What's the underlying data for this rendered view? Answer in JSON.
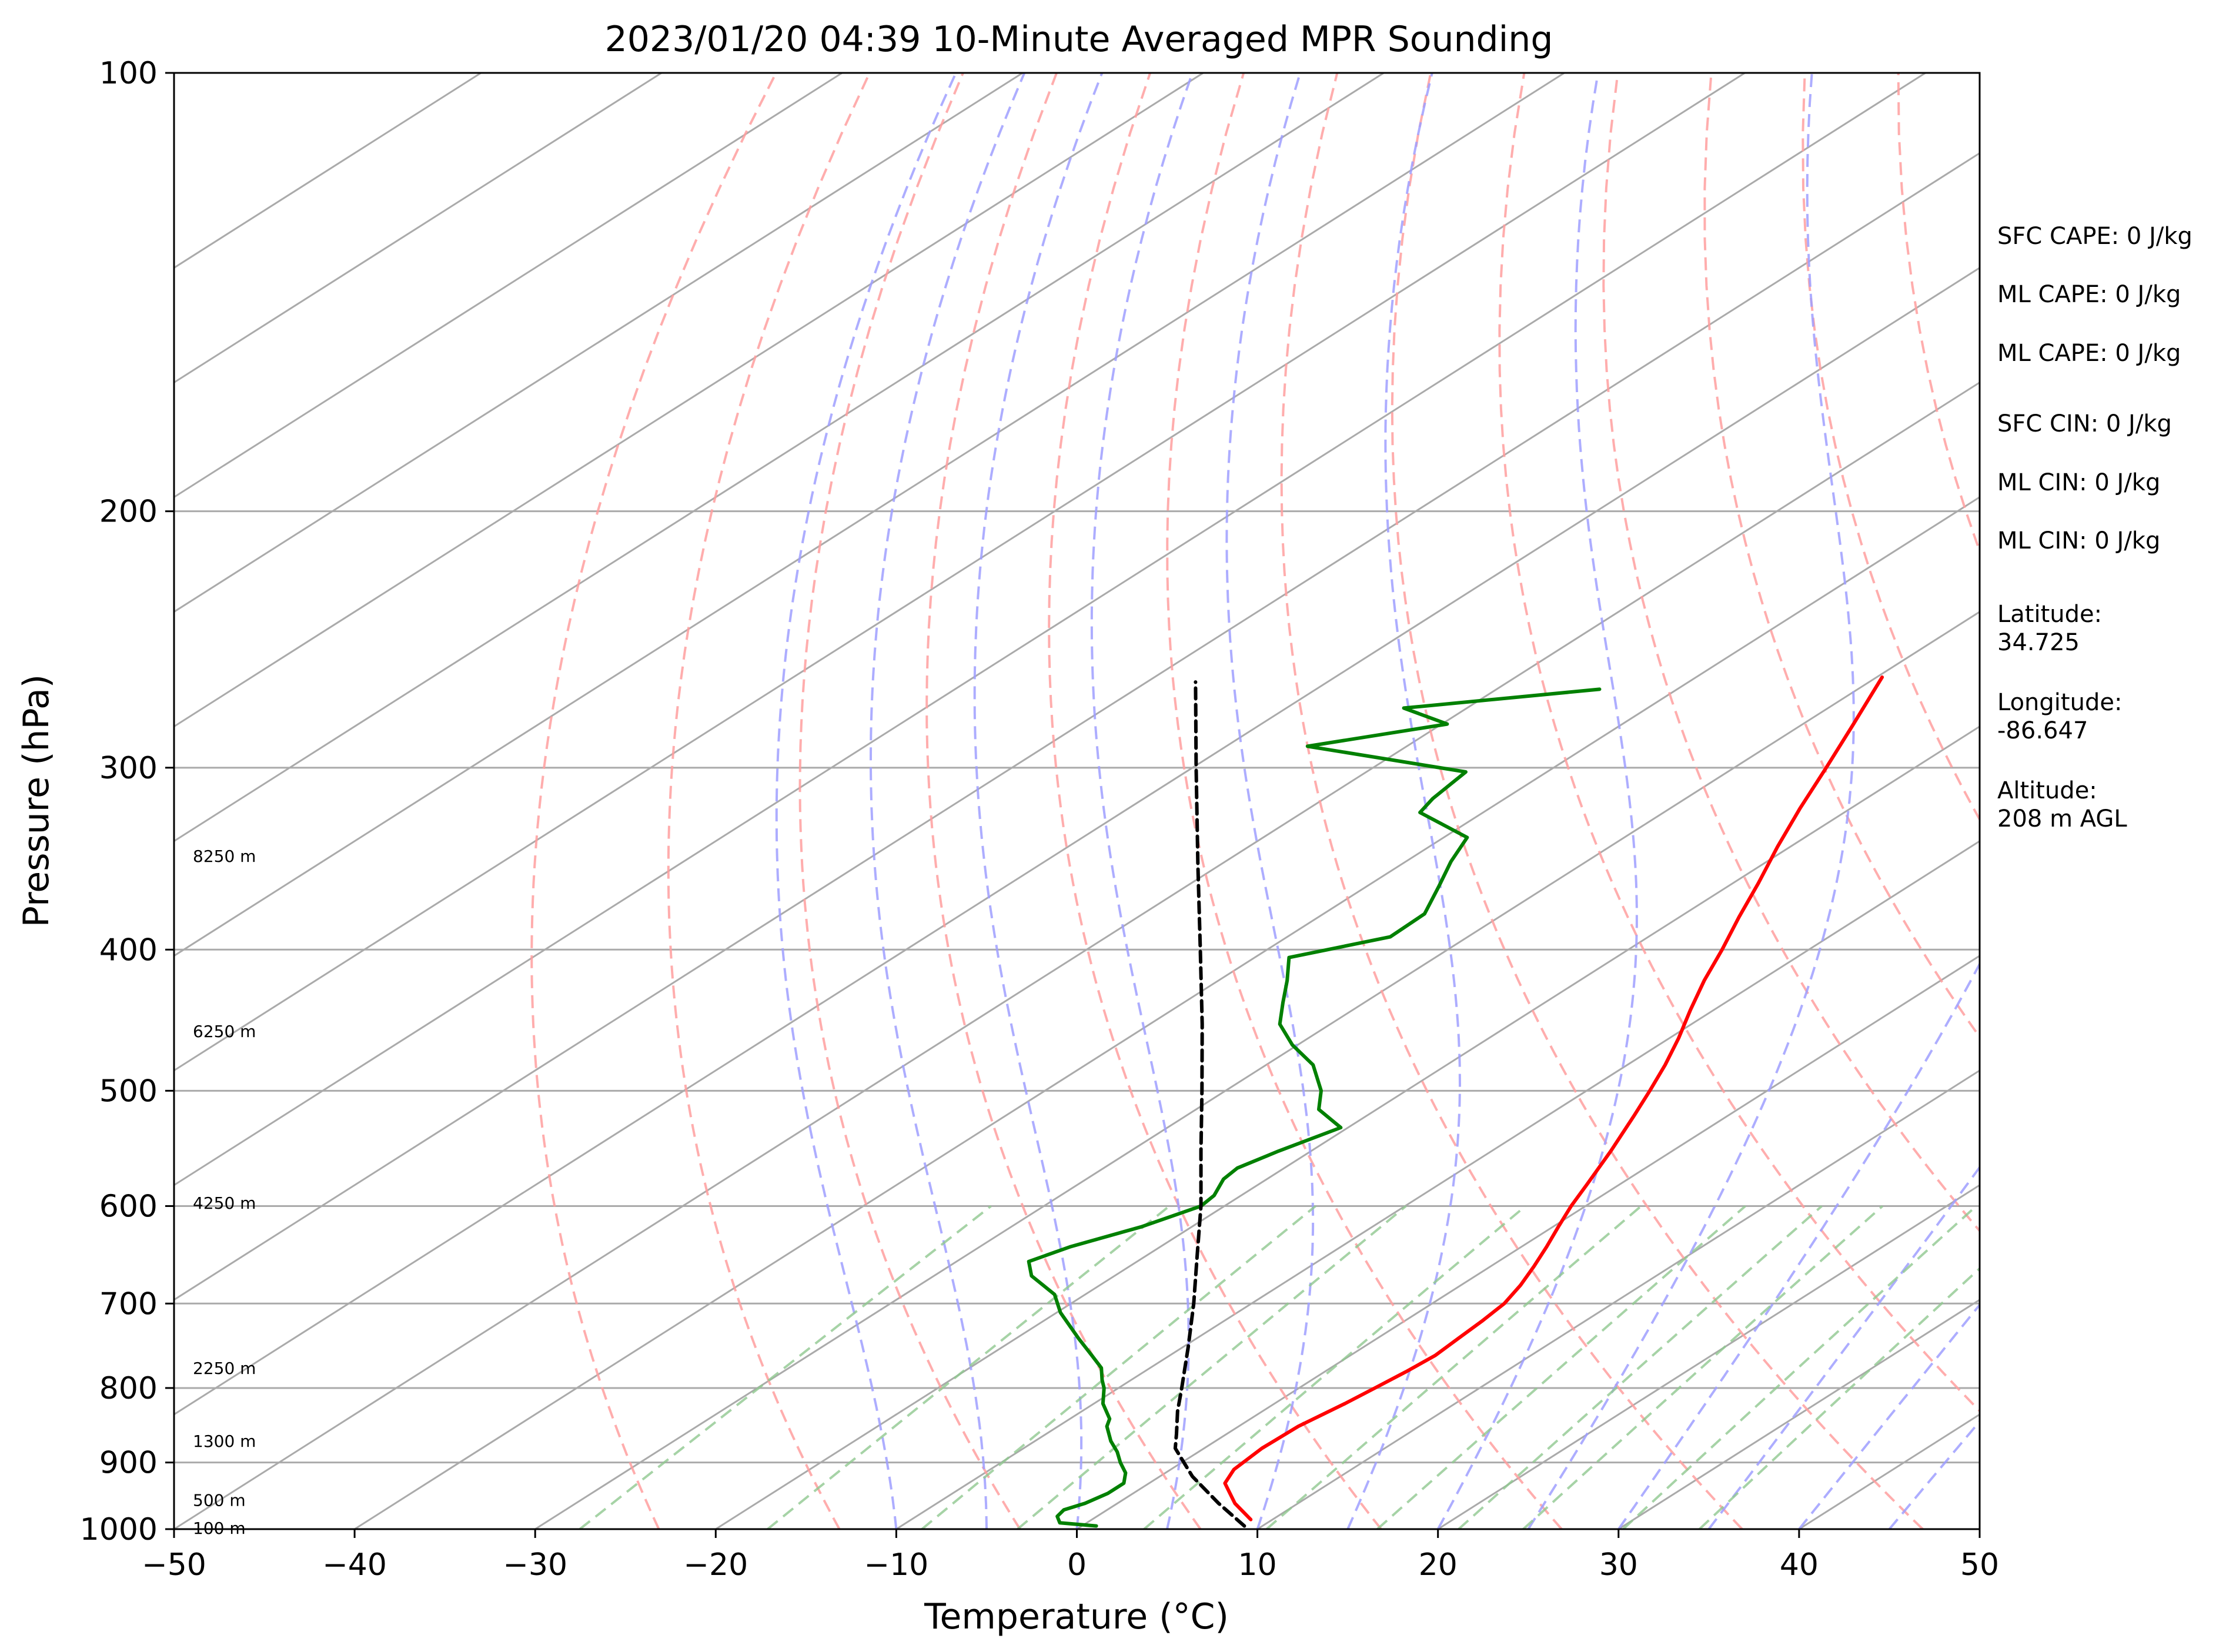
{
  "chart_data": {
    "type": "line",
    "title": "2023/01/20 04:39 10-Minute Averaged MPR Sounding",
    "xlabel": "Temperature (°C)",
    "ylabel": "Pressure (hPa)",
    "xlim": [
      -50,
      50
    ],
    "ylim": [
      1000,
      100
    ],
    "y_scale": "log",
    "skew_t": true,
    "x_ticks": [
      "−50",
      "−40",
      "−30",
      "−20",
      "−10",
      "0",
      "10",
      "20",
      "30",
      "40",
      "50"
    ],
    "x_tick_values": [
      -50,
      -40,
      -30,
      -20,
      -10,
      0,
      10,
      20,
      30,
      40,
      50
    ],
    "y_ticks": [
      "100",
      "200",
      "300",
      "400",
      "500",
      "600",
      "700",
      "800",
      "900",
      "1000"
    ],
    "y_tick_values": [
      100,
      200,
      300,
      400,
      500,
      600,
      700,
      800,
      900,
      1000
    ],
    "grid": true,
    "series": [
      {
        "role": "temperature",
        "color": "#ff0000",
        "points": [
          {
            "p": 985,
            "t": 8.8
          },
          {
            "p": 960,
            "t": 6.5
          },
          {
            "p": 930,
            "t": 4.2
          },
          {
            "p": 910,
            "t": 3.5
          },
          {
            "p": 880,
            "t": 3.2
          },
          {
            "p": 850,
            "t": 3.3
          },
          {
            "p": 820,
            "t": 3.9
          },
          {
            "p": 800,
            "t": 4.2
          },
          {
            "p": 780,
            "t": 4.5
          },
          {
            "p": 760,
            "t": 4.7
          },
          {
            "p": 740,
            "t": 4.5
          },
          {
            "p": 720,
            "t": 4.3
          },
          {
            "p": 700,
            "t": 4.0
          },
          {
            "p": 680,
            "t": 3.3
          },
          {
            "p": 660,
            "t": 2.4
          },
          {
            "p": 640,
            "t": 1.4
          },
          {
            "p": 620,
            "t": 0.3
          },
          {
            "p": 600,
            "t": -0.8
          },
          {
            "p": 580,
            "t": -1.8
          },
          {
            "p": 550,
            "t": -3.4
          },
          {
            "p": 520,
            "t": -5.2
          },
          {
            "p": 500,
            "t": -6.5
          },
          {
            "p": 480,
            "t": -7.9
          },
          {
            "p": 460,
            "t": -9.5
          },
          {
            "p": 440,
            "t": -11.3
          },
          {
            "p": 420,
            "t": -13.1
          },
          {
            "p": 400,
            "t": -14.8
          },
          {
            "p": 380,
            "t": -16.7
          },
          {
            "p": 360,
            "t": -18.6
          },
          {
            "p": 340,
            "t": -20.7
          },
          {
            "p": 320,
            "t": -22.8
          },
          {
            "p": 300,
            "t": -24.9
          },
          {
            "p": 280,
            "t": -27.2
          },
          {
            "p": 260,
            "t": -29.7
          }
        ]
      },
      {
        "role": "dewpoint",
        "color": "#008000",
        "points": [
          {
            "p": 995,
            "t": 0.8
          },
          {
            "p": 990,
            "t": -1.5
          },
          {
            "p": 980,
            "t": -2.2
          },
          {
            "p": 970,
            "t": -2.4
          },
          {
            "p": 960,
            "t": -1.8
          },
          {
            "p": 945,
            "t": -1.4
          },
          {
            "p": 930,
            "t": -1.4
          },
          {
            "p": 915,
            "t": -2.2
          },
          {
            "p": 900,
            "t": -3.4
          },
          {
            "p": 885,
            "t": -4.5
          },
          {
            "p": 870,
            "t": -5.8
          },
          {
            "p": 850,
            "t": -7.3
          },
          {
            "p": 840,
            "t": -7.8
          },
          {
            "p": 820,
            "t": -9.5
          },
          {
            "p": 800,
            "t": -10.8
          },
          {
            "p": 790,
            "t": -11.6
          },
          {
            "p": 775,
            "t": -12.7
          },
          {
            "p": 760,
            "t": -14.3
          },
          {
            "p": 740,
            "t": -16.5
          },
          {
            "p": 710,
            "t": -19.8
          },
          {
            "p": 690,
            "t": -21.7
          },
          {
            "p": 670,
            "t": -24.6
          },
          {
            "p": 655,
            "t": -26.0
          },
          {
            "p": 640,
            "t": -25.0
          },
          {
            "p": 620,
            "t": -22.8
          },
          {
            "p": 600,
            "t": -21.3
          },
          {
            "p": 590,
            "t": -21.5
          },
          {
            "p": 575,
            "t": -22.4
          },
          {
            "p": 565,
            "t": -22.6
          },
          {
            "p": 550,
            "t": -21.8
          },
          {
            "p": 530,
            "t": -20.4
          },
          {
            "p": 515,
            "t": -23.2
          },
          {
            "p": 500,
            "t": -24.7
          },
          {
            "p": 480,
            "t": -27.4
          },
          {
            "p": 465,
            "t": -30.3
          },
          {
            "p": 450,
            "t": -32.8
          },
          {
            "p": 435,
            "t": -34.5
          },
          {
            "p": 420,
            "t": -36.2
          },
          {
            "p": 405,
            "t": -38.1
          },
          {
            "p": 392,
            "t": -34.3
          },
          {
            "p": 378,
            "t": -34.4
          },
          {
            "p": 362,
            "t": -36.0
          },
          {
            "p": 348,
            "t": -37.5
          },
          {
            "p": 335,
            "t": -38.7
          },
          {
            "p": 322,
            "t": -43.5
          },
          {
            "p": 315,
            "t": -44.0
          },
          {
            "p": 302,
            "t": -44.5
          },
          {
            "p": 290,
            "t": -55.5
          },
          {
            "p": 280,
            "t": -49.7
          },
          {
            "p": 273,
            "t": -53.5
          },
          {
            "p": 265,
            "t": -44.3
          }
        ]
      },
      {
        "role": "parcel",
        "color": "#000000",
        "points": [
          {
            "p": 995,
            "t": 9.0
          },
          {
            "p": 960,
            "t": 5.6
          },
          {
            "p": 920,
            "t": 1.8
          },
          {
            "p": 880,
            "t": -1.6
          },
          {
            "p": 860,
            "t": -2.8
          },
          {
            "p": 830,
            "t": -4.7
          },
          {
            "p": 800,
            "t": -6.5
          },
          {
            "p": 750,
            "t": -9.7
          },
          {
            "p": 700,
            "t": -13.2
          },
          {
            "p": 650,
            "t": -17.1
          },
          {
            "p": 600,
            "t": -21.3
          },
          {
            "p": 550,
            "t": -26.1
          },
          {
            "p": 500,
            "t": -31.3
          },
          {
            "p": 450,
            "t": -37.1
          },
          {
            "p": 400,
            "t": -43.7
          },
          {
            "p": 350,
            "t": -51.2
          },
          {
            "p": 300,
            "t": -59.8
          },
          {
            "p": 262,
            "t": -67.3
          }
        ]
      }
    ],
    "height_labels": [
      {
        "text": "8250 m",
        "p": 345
      },
      {
        "text": "6250 m",
        "p": 455
      },
      {
        "text": "4250 m",
        "p": 597
      },
      {
        "text": "2250 m",
        "p": 775
      },
      {
        "text": "1300 m",
        "p": 870
      },
      {
        "text": "500 m",
        "p": 955
      },
      {
        "text": "100 m",
        "p": 998
      }
    ],
    "stats": [
      {
        "lines": [
          "SFC CAPE: 0 J/kg"
        ]
      },
      {
        "lines": [
          "ML CAPE: 0 J/kg"
        ]
      },
      {
        "lines": [
          "ML CAPE: 0 J/kg"
        ]
      },
      {
        "lines": [
          "SFC CIN: 0 J/kg"
        ]
      },
      {
        "lines": [
          "ML CIN: 0 J/kg"
        ]
      },
      {
        "lines": [
          "ML CIN: 0 J/kg"
        ]
      },
      {
        "lines": [
          "Latitude:",
          "34.725"
        ]
      },
      {
        "lines": [
          "Longitude:",
          "-86.647"
        ]
      },
      {
        "lines": [
          "Altitude:",
          "208 m AGL"
        ]
      }
    ],
    "colors": {
      "isotherm": "#aaaaaa",
      "isobar": "#aaaaaa",
      "dry_adiabat": "#ff9f9f",
      "moist_adiabat": "#9f9fff",
      "mixing_ratio": "#90c890"
    }
  }
}
